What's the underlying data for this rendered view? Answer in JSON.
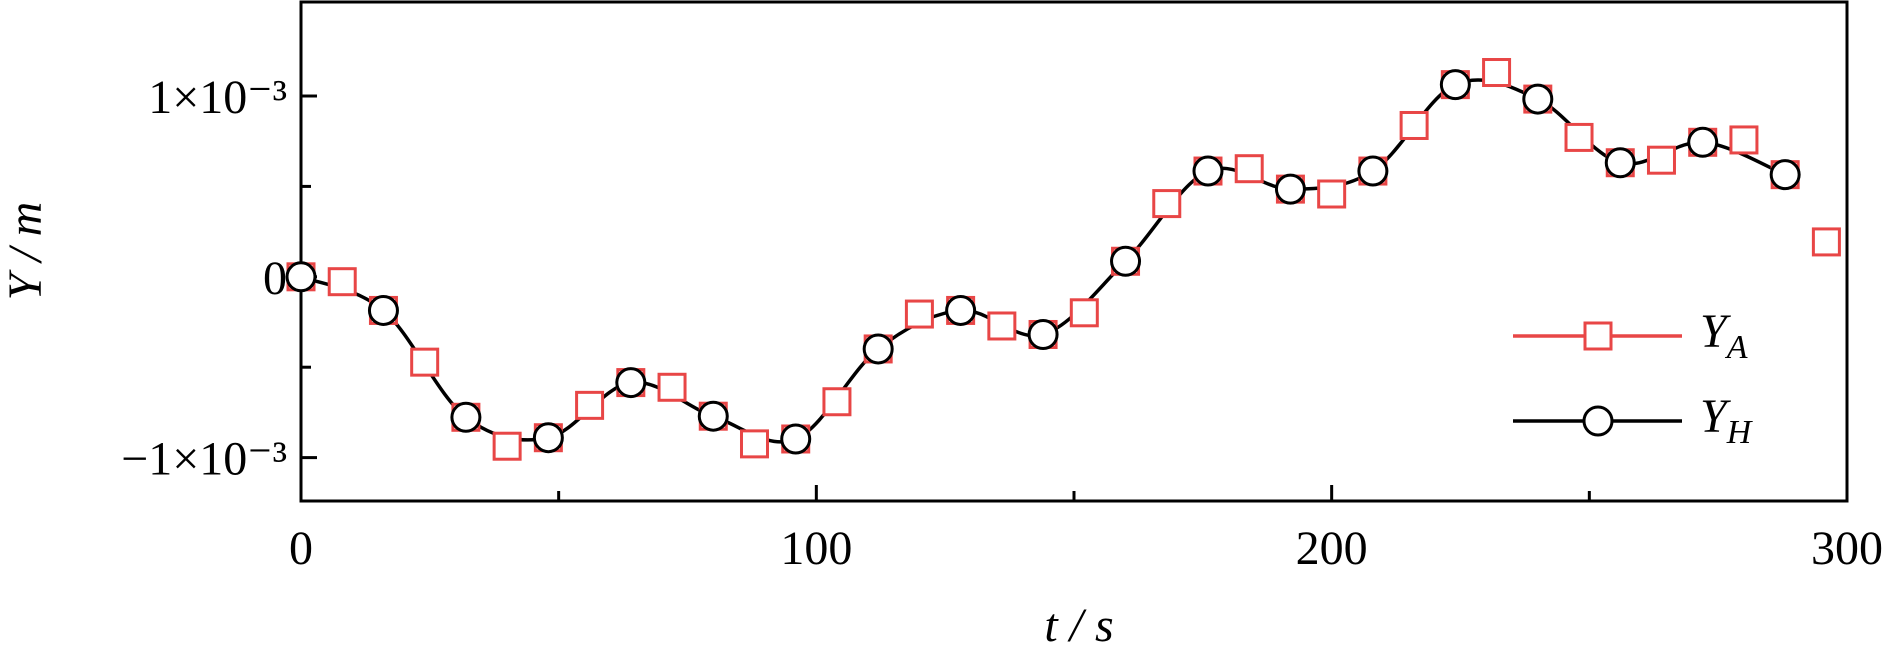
{
  "chart_data": {
    "type": "line",
    "x_label": "t / s",
    "y_label": "Y / m",
    "xlim": [
      0,
      300
    ],
    "xticks": [
      0,
      100,
      200,
      300
    ],
    "xminorticks": [
      50,
      150,
      250
    ],
    "ylim": [
      -0.00124,
      0.00152
    ],
    "yticks": [
      {
        "value": -0.001,
        "label": "−1×10⁻³"
      },
      0,
      {
        "value": 0.001,
        "label": "1×10⁻³"
      }
    ],
    "yminorticks": [
      -0.0005,
      0.0005
    ],
    "legend": "lower right",
    "series": [
      {
        "name": "Y_A",
        "color": "#e84646",
        "marker": "square",
        "line": false,
        "x": [
          0,
          8,
          16,
          24,
          32,
          40,
          48,
          56,
          64,
          72,
          80,
          88,
          96,
          104,
          112,
          120,
          128,
          136,
          144,
          152,
          160,
          168,
          176,
          184,
          192,
          200,
          208,
          216,
          224,
          232,
          240,
          248,
          256,
          264,
          272,
          280,
          288,
          296
        ],
        "values": [
          0,
          -2.7e-05,
          -0.000186,
          -0.000472,
          -0.000777,
          -0.000937,
          -0.00089,
          -0.000711,
          -0.000585,
          -0.000611,
          -0.000771,
          -0.000924,
          -0.000897,
          -0.000691,
          -0.000399,
          -0.000206,
          -0.000186,
          -0.000272,
          -0.000319,
          -0.000199,
          8.6e-05,
          0.000405,
          0.000585,
          0.000598,
          0.000485,
          0.000458,
          0.000585,
          0.000837,
          0.001063,
          0.00113,
          0.000983,
          0.000771,
          0.000631,
          0.000645,
          0.000744,
          0.000757,
          0.000565,
          0.000193
        ]
      },
      {
        "name": "Y_H",
        "color": "#000000",
        "marker": "circle",
        "line": true,
        "x": [
          0,
          16,
          32,
          48,
          64,
          80,
          96,
          112,
          128,
          144,
          160,
          176,
          192,
          208,
          224,
          240,
          256,
          272,
          288
        ],
        "values": [
          0,
          -0.000186,
          -0.000777,
          -0.00089,
          -0.000585,
          -0.000771,
          -0.000897,
          -0.000399,
          -0.000186,
          -0.000319,
          8.6e-05,
          0.000585,
          0.000485,
          0.000585,
          0.001063,
          0.000983,
          0.000631,
          0.000744,
          0.000565
        ]
      }
    ]
  }
}
